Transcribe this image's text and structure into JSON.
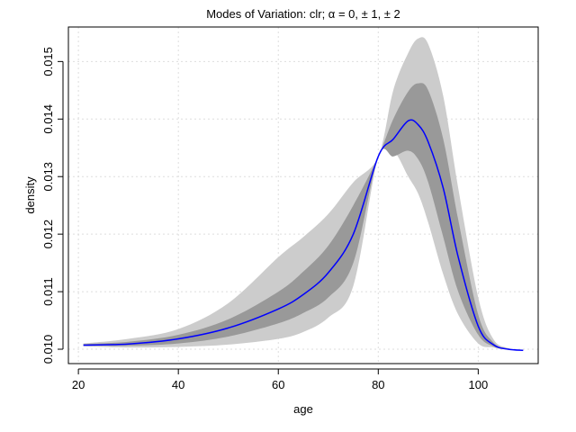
{
  "chart_data": {
    "type": "area",
    "title": "Modes of Variation: clr; α = 0, ± 1, ± 2",
    "xlabel": "age",
    "ylabel": "density",
    "xlim": [
      18,
      112
    ],
    "ylim": [
      0.00975,
      0.0156
    ],
    "x_ticks": [
      20,
      40,
      60,
      80,
      100
    ],
    "x_tick_labels": [
      "20",
      "40",
      "60",
      "80",
      "100"
    ],
    "y_ticks": [
      0.01,
      0.011,
      0.012,
      0.013,
      0.014,
      0.015
    ],
    "y_tick_labels": [
      "0.010",
      "0.011",
      "0.012",
      "0.013",
      "0.014",
      "0.015"
    ],
    "grid": true,
    "colors": {
      "outer_band": "#cccccc",
      "inner_band": "#999999",
      "mean_line": "#0000ff",
      "grid": "#dddddd"
    },
    "x": [
      21,
      30,
      40,
      50,
      60,
      65,
      70,
      75,
      80,
      83,
      86,
      88,
      90,
      93,
      96,
      100,
      103,
      106,
      109
    ],
    "series": [
      {
        "role": "outer_upper",
        "values": [
          0.0101,
          0.01018,
          0.01035,
          0.0108,
          0.0116,
          0.01195,
          0.01235,
          0.0129,
          0.01335,
          0.0145,
          0.01515,
          0.0154,
          0.0153,
          0.0144,
          0.0128,
          0.0109,
          0.01018,
          0.01002,
          0.00998
        ]
      },
      {
        "role": "inner_upper",
        "values": [
          0.01009,
          0.01013,
          0.01025,
          0.01052,
          0.011,
          0.01135,
          0.0118,
          0.0125,
          0.01335,
          0.014,
          0.01448,
          0.01462,
          0.0145,
          0.01365,
          0.01225,
          0.0106,
          0.01012,
          0.01,
          0.00998
        ]
      },
      {
        "role": "mean",
        "values": [
          0.01007,
          0.01009,
          0.01018,
          0.01037,
          0.0107,
          0.01095,
          0.01133,
          0.012,
          0.01335,
          0.01365,
          0.01397,
          0.0139,
          0.0136,
          0.0128,
          0.0116,
          0.0104,
          0.01008,
          0.01,
          0.00998
        ]
      },
      {
        "role": "inner_lower",
        "values": [
          0.01006,
          0.01006,
          0.0101,
          0.01022,
          0.01045,
          0.01063,
          0.0109,
          0.0115,
          0.01335,
          0.01335,
          0.01345,
          0.0133,
          0.0129,
          0.01195,
          0.011,
          0.01025,
          0.01005,
          0.00999,
          0.00998
        ]
      },
      {
        "role": "outer_lower",
        "values": [
          0.01005,
          0.01003,
          0.01004,
          0.01008,
          0.01018,
          0.0103,
          0.01055,
          0.0111,
          0.01335,
          0.01345,
          0.013,
          0.0127,
          0.0122,
          0.0113,
          0.0106,
          0.0101,
          0.01003,
          0.00999,
          0.00998
        ]
      }
    ]
  }
}
